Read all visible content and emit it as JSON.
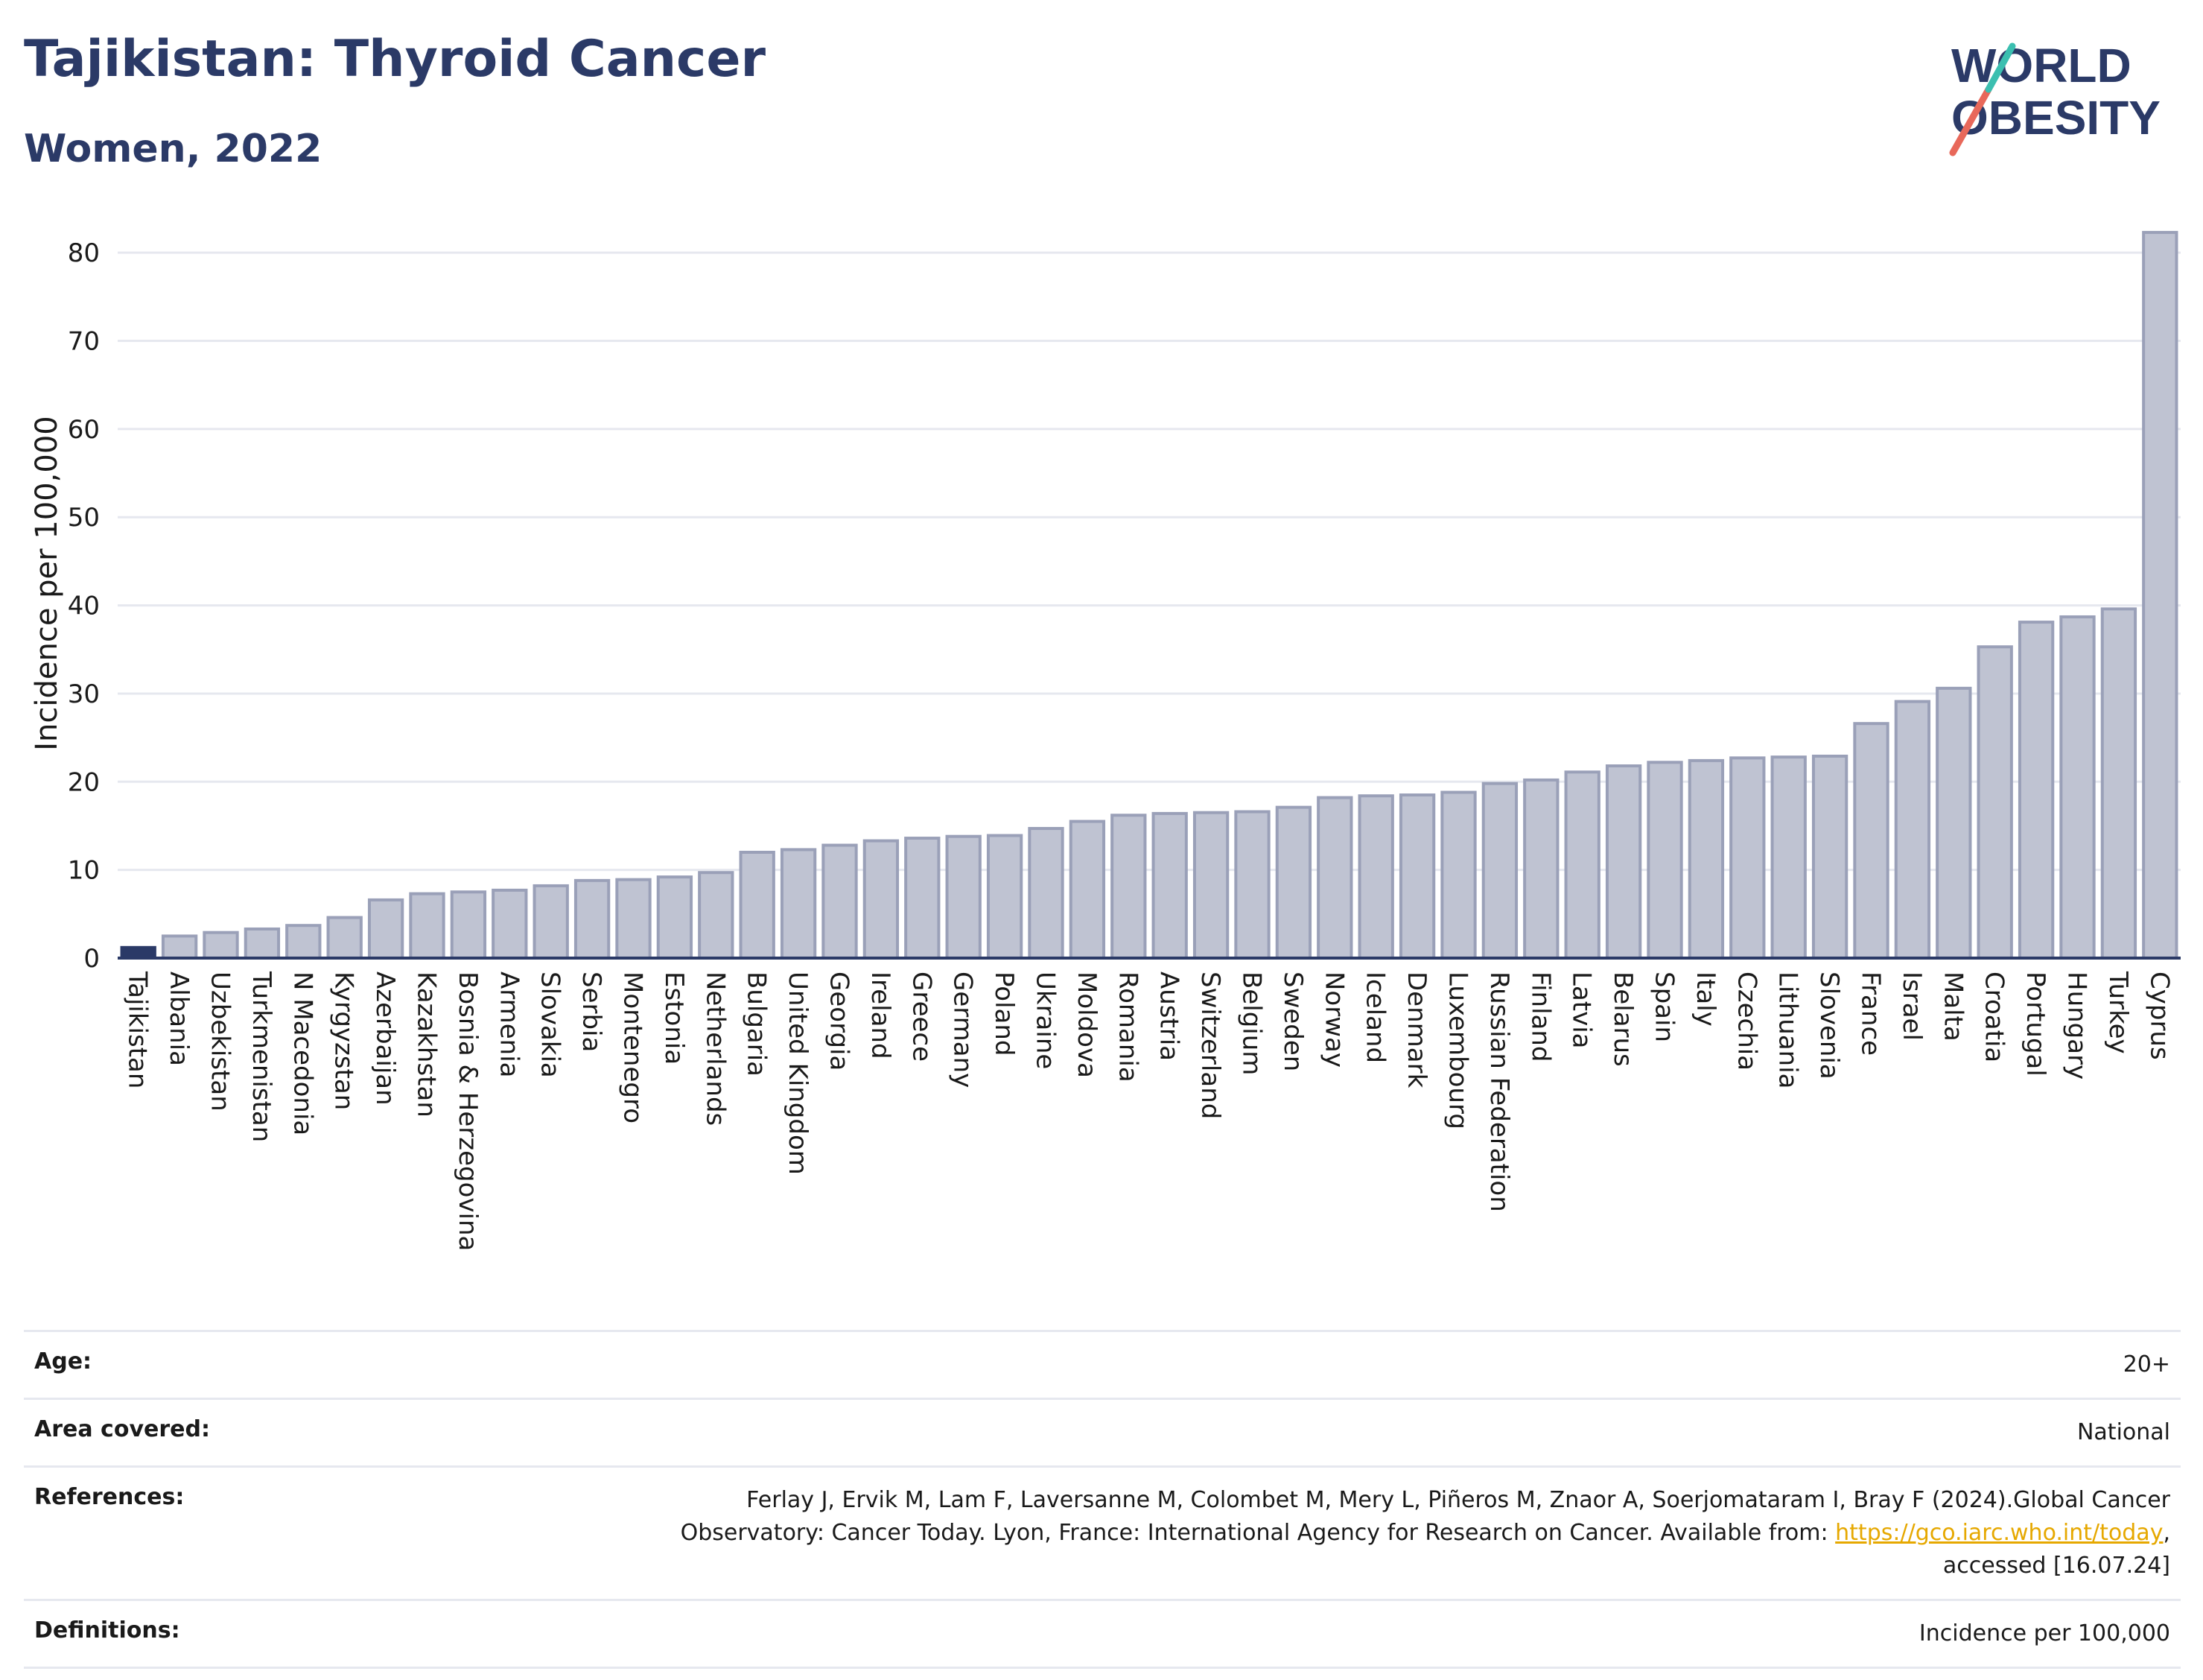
{
  "header": {
    "title": "Tajikistan: Thyroid Cancer",
    "subtitle": "Women, 2022",
    "logo_line1": "WORLD",
    "logo_line2": "OBESITY"
  },
  "colors": {
    "title": "#2b3a67",
    "highlight_bar": "#2b3a67",
    "bar_fill": "#bfc3d2",
    "bar_stroke": "#9aa0b8",
    "grid": "#e6e8ef",
    "logo_red": "#e8685a",
    "logo_teal": "#3bbfb0",
    "link": "#e6a800"
  },
  "chart_data": {
    "type": "bar",
    "ylabel": "Incidence per 100,000",
    "ylim": [
      0,
      85
    ],
    "yticks": [
      0,
      10,
      20,
      30,
      40,
      50,
      60,
      70,
      80
    ],
    "grid": true,
    "highlight": "Tajikistan",
    "categories": [
      "Tajikistan",
      "Albania",
      "Uzbekistan",
      "Turkmenistan",
      "N Macedonia",
      "Kyrgyzstan",
      "Azerbaijan",
      "Kazakhstan",
      "Bosnia & Herzegovina",
      "Armenia",
      "Slovakia",
      "Serbia",
      "Montenegro",
      "Estonia",
      "Netherlands",
      "Bulgaria",
      "United Kingdom",
      "Georgia",
      "Ireland",
      "Greece",
      "Germany",
      "Poland",
      "Ukraine",
      "Moldova",
      "Romania",
      "Austria",
      "Switzerland",
      "Belgium",
      "Sweden",
      "Norway",
      "Iceland",
      "Denmark",
      "Luxembourg",
      "Russian Federation",
      "Finland",
      "Latvia",
      "Belarus",
      "Spain",
      "Italy",
      "Czechia",
      "Lithuania",
      "Slovenia",
      "France",
      "Israel",
      "Malta",
      "Croatia",
      "Portugal",
      "Hungary",
      "Turkey",
      "Cyprus"
    ],
    "values": [
      1.2,
      2.5,
      2.9,
      3.3,
      3.7,
      4.6,
      6.6,
      7.3,
      7.5,
      7.7,
      8.2,
      8.8,
      8.9,
      9.2,
      9.7,
      12.0,
      12.3,
      12.8,
      13.3,
      13.6,
      13.8,
      13.9,
      14.7,
      15.5,
      16.2,
      16.4,
      16.5,
      16.6,
      17.1,
      18.2,
      18.4,
      18.5,
      18.8,
      19.8,
      20.2,
      21.1,
      21.8,
      22.2,
      22.4,
      22.7,
      22.8,
      22.9,
      26.6,
      29.1,
      30.6,
      35.3,
      38.1,
      38.7,
      39.6,
      82.3
    ]
  },
  "info": {
    "age_label": "Age:",
    "age_value": "20+",
    "area_label": "Area covered:",
    "area_value": "National",
    "references_label": "References:",
    "references_line1": "Ferlay J, Ervik M, Lam F, Laversanne M, Colombet M, Mery L, Piñeros M, Znaor A, Soerjomataram I, Bray F (2024).Global Cancer",
    "references_line2": "Observatory: Cancer Today. Lyon, France: International Agency for Research on Cancer. Available from:",
    "references_link": "https://gco.iarc.who.int/today",
    "references_line3_suffix": ",",
    "references_line4": "accessed [16.07.24]",
    "definitions_label": "Definitions:",
    "definitions_value": "Incidence per 100,000"
  }
}
